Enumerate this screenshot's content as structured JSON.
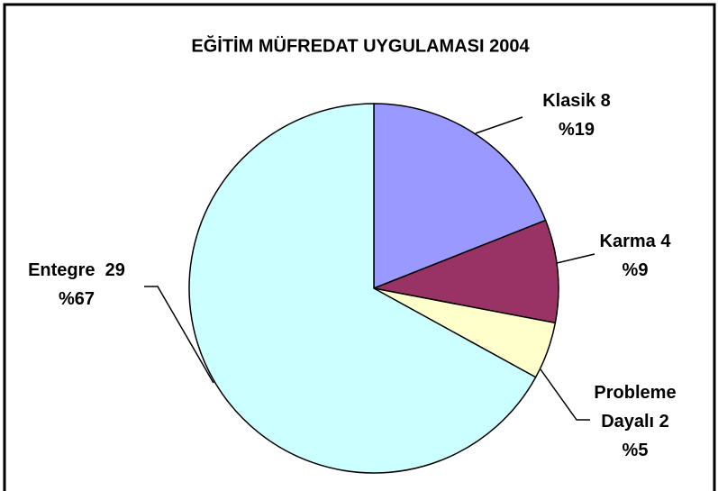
{
  "chart_data": {
    "type": "pie",
    "title": "EĞİTİM MÜFREDAT UYGULAMASI 2004",
    "categories": [
      "Klasik 8",
      "Karma 4",
      "Probleme Dayalı 2",
      "Entegre  29"
    ],
    "values": [
      19,
      9,
      5,
      67
    ],
    "value_labels": [
      "%19",
      "%9",
      "%5",
      "%67"
    ],
    "colors": [
      "#9999ff",
      "#993366",
      "#ffffcc",
      "#ccffff"
    ]
  }
}
